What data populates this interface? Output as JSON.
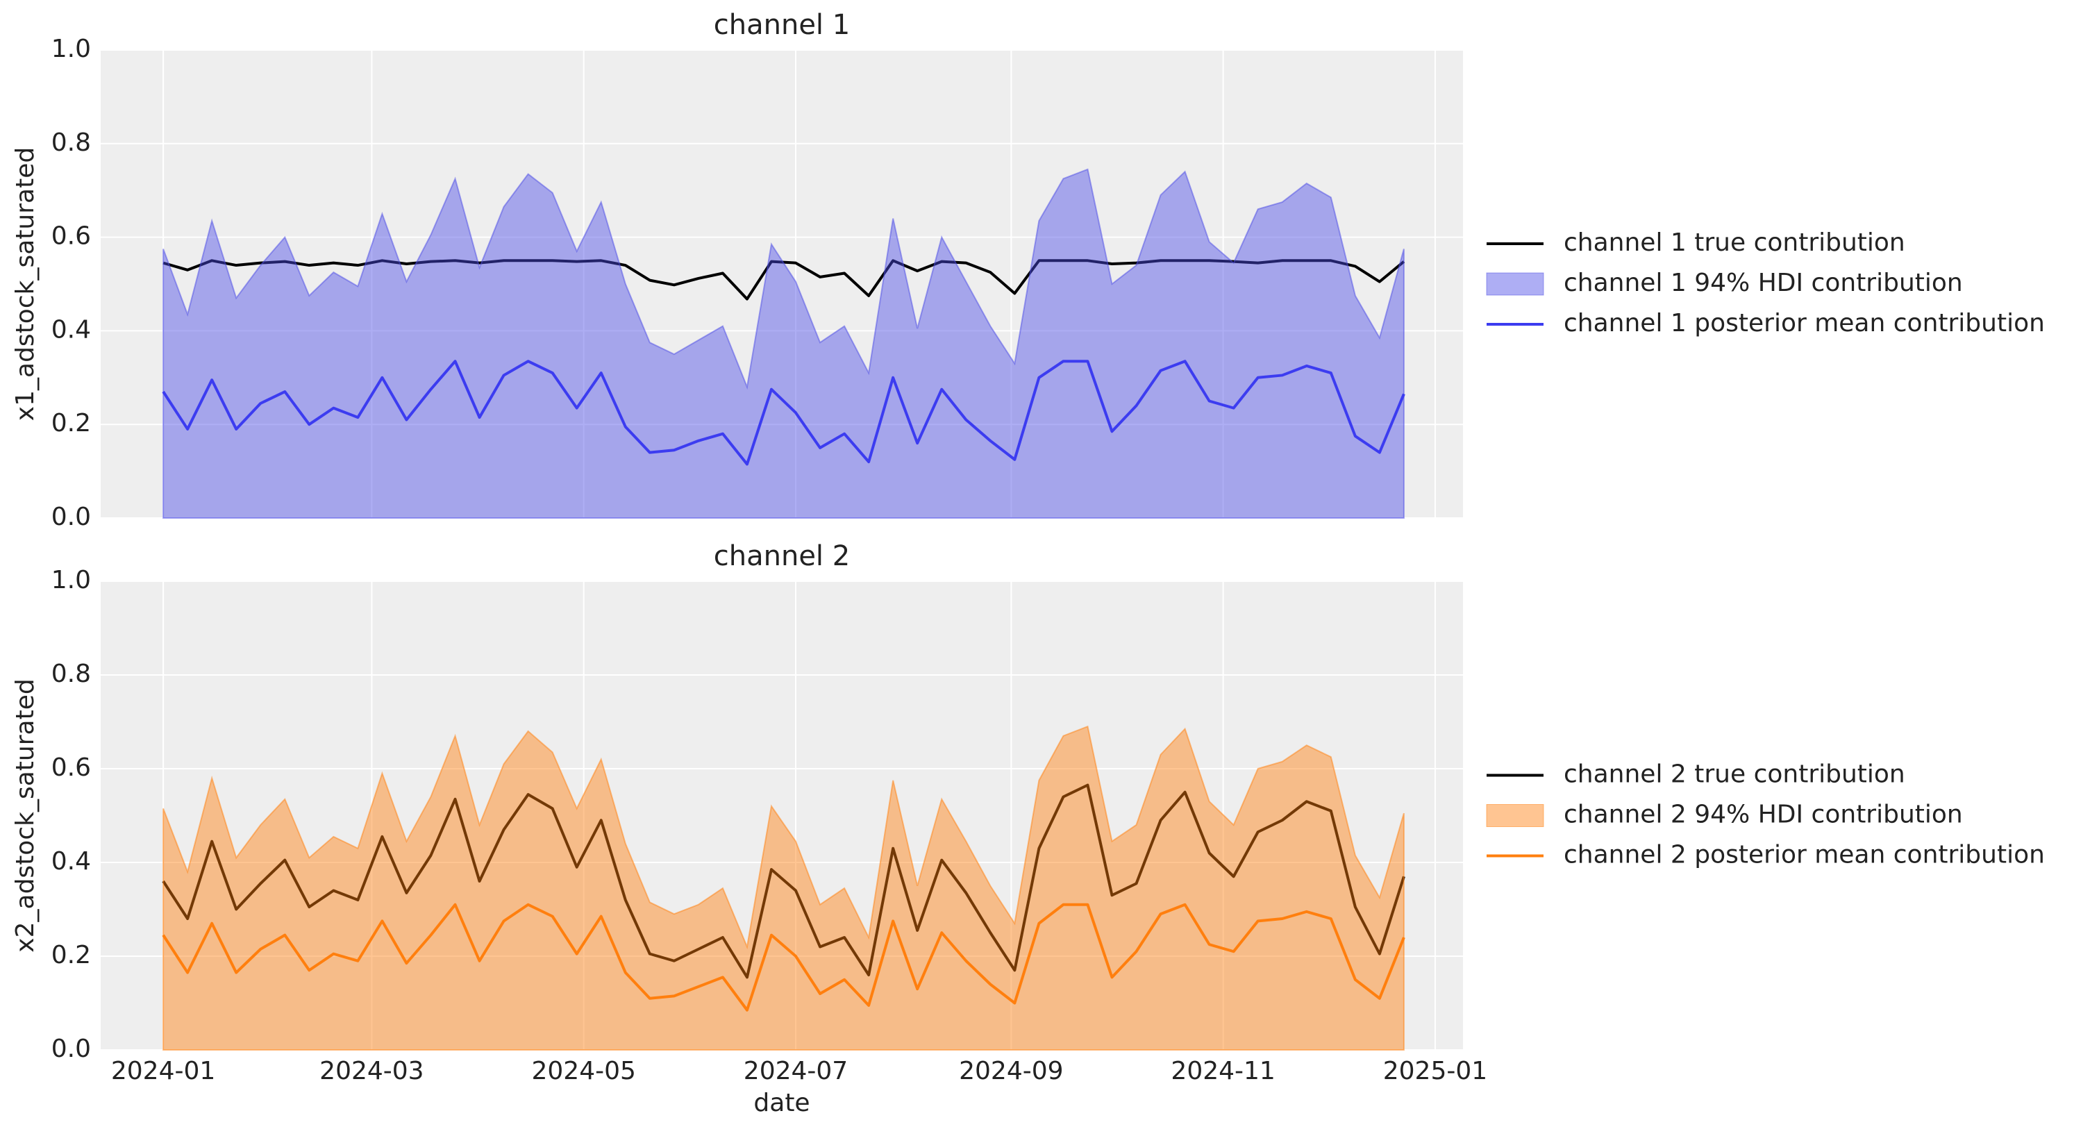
{
  "chart_data": [
    {
      "type": "line",
      "title": "channel 1",
      "ylabel": "x1_adstock_saturated",
      "x": [
        "2024-01-01",
        "2024-01-08",
        "2024-01-15",
        "2024-01-22",
        "2024-01-29",
        "2024-02-05",
        "2024-02-12",
        "2024-02-19",
        "2024-02-26",
        "2024-03-04",
        "2024-03-11",
        "2024-03-18",
        "2024-03-25",
        "2024-04-01",
        "2024-04-08",
        "2024-04-15",
        "2024-04-22",
        "2024-04-29",
        "2024-05-06",
        "2024-05-13",
        "2024-05-20",
        "2024-05-27",
        "2024-06-03",
        "2024-06-10",
        "2024-06-17",
        "2024-06-24",
        "2024-07-01",
        "2024-07-08",
        "2024-07-15",
        "2024-07-22",
        "2024-07-29",
        "2024-08-05",
        "2024-08-12",
        "2024-08-19",
        "2024-08-26",
        "2024-09-02",
        "2024-09-09",
        "2024-09-16",
        "2024-09-23",
        "2024-09-30",
        "2024-10-07",
        "2024-10-14",
        "2024-10-21",
        "2024-10-28",
        "2024-11-04",
        "2024-11-11",
        "2024-11-18",
        "2024-11-25",
        "2024-12-02",
        "2024-12-09",
        "2024-12-16",
        "2024-12-23"
      ],
      "xlim": [
        "2023-12-14",
        "2025-01-09"
      ],
      "xticks": [
        {
          "value": "2024-01-01",
          "label": "2024-01"
        },
        {
          "value": "2024-03-01",
          "label": "2024-03"
        },
        {
          "value": "2024-05-01",
          "label": "2024-05"
        },
        {
          "value": "2024-07-01",
          "label": "2024-07"
        },
        {
          "value": "2024-09-01",
          "label": "2024-09"
        },
        {
          "value": "2024-11-01",
          "label": "2024-11"
        },
        {
          "value": "2025-01-01",
          "label": "2025-01"
        }
      ],
      "show_xticklabels": false,
      "ylim": [
        0,
        1
      ],
      "yticks": [
        {
          "value": 0,
          "label": "0.0"
        },
        {
          "value": 0.2,
          "label": "0.2"
        },
        {
          "value": 0.4,
          "label": "0.4"
        },
        {
          "value": 0.6,
          "label": "0.6"
        },
        {
          "value": 0.8,
          "label": "0.8"
        },
        {
          "value": 1,
          "label": "1.0"
        }
      ],
      "grid": true,
      "legend": "right",
      "series": [
        {
          "name": "channel 1 true contribution",
          "color": "#000000",
          "values": [
            0.545,
            0.53,
            0.55,
            0.54,
            0.545,
            0.548,
            0.54,
            0.545,
            0.54,
            0.55,
            0.543,
            0.548,
            0.55,
            0.545,
            0.55,
            0.55,
            0.55,
            0.548,
            0.55,
            0.54,
            0.508,
            0.498,
            0.512,
            0.523,
            0.468,
            0.548,
            0.545,
            0.515,
            0.523,
            0.475,
            0.55,
            0.528,
            0.548,
            0.545,
            0.525,
            0.48,
            0.55,
            0.55,
            0.55,
            0.543,
            0.545,
            0.55,
            0.55,
            0.55,
            0.548,
            0.545,
            0.55,
            0.55,
            0.55,
            0.538,
            0.505,
            0.548
          ]
        },
        {
          "name": "channel 1 94% HDI contribution",
          "color": "#4b4be6",
          "type": "band",
          "lower": [
            0,
            0,
            0,
            0,
            0,
            0,
            0,
            0,
            0,
            0,
            0,
            0,
            0,
            0,
            0,
            0,
            0,
            0,
            0,
            0,
            0,
            0,
            0,
            0,
            0,
            0,
            0,
            0,
            0,
            0,
            0,
            0,
            0,
            0,
            0,
            0,
            0,
            0,
            0,
            0,
            0,
            0,
            0,
            0,
            0,
            0,
            0,
            0,
            0,
            0,
            0,
            0
          ],
          "upper": [
            0.575,
            0.435,
            0.635,
            0.47,
            0.54,
            0.6,
            0.475,
            0.525,
            0.495,
            0.65,
            0.505,
            0.605,
            0.725,
            0.535,
            0.665,
            0.735,
            0.695,
            0.57,
            0.675,
            0.5,
            0.375,
            0.35,
            0.38,
            0.41,
            0.28,
            0.585,
            0.505,
            0.375,
            0.41,
            0.31,
            0.64,
            0.405,
            0.6,
            0.505,
            0.41,
            0.33,
            0.635,
            0.725,
            0.745,
            0.5,
            0.54,
            0.69,
            0.74,
            0.59,
            0.545,
            0.66,
            0.675,
            0.715,
            0.685,
            0.475,
            0.385,
            0.575
          ]
        },
        {
          "name": "channel 1 posterior mean contribution",
          "color": "#3c3cf0",
          "values": [
            0.27,
            0.19,
            0.295,
            0.19,
            0.245,
            0.27,
            0.2,
            0.235,
            0.215,
            0.3,
            0.21,
            0.275,
            0.335,
            0.215,
            0.305,
            0.335,
            0.31,
            0.235,
            0.31,
            0.195,
            0.14,
            0.145,
            0.165,
            0.18,
            0.115,
            0.275,
            0.225,
            0.15,
            0.18,
            0.12,
            0.3,
            0.16,
            0.275,
            0.21,
            0.165,
            0.125,
            0.3,
            0.335,
            0.335,
            0.185,
            0.24,
            0.315,
            0.335,
            0.25,
            0.235,
            0.3,
            0.305,
            0.325,
            0.31,
            0.175,
            0.14,
            0.265
          ]
        }
      ]
    },
    {
      "type": "line",
      "title": "channel 2",
      "ylabel": "x2_adstock_saturated",
      "xlabel": "date",
      "x": [
        "2024-01-01",
        "2024-01-08",
        "2024-01-15",
        "2024-01-22",
        "2024-01-29",
        "2024-02-05",
        "2024-02-12",
        "2024-02-19",
        "2024-02-26",
        "2024-03-04",
        "2024-03-11",
        "2024-03-18",
        "2024-03-25",
        "2024-04-01",
        "2024-04-08",
        "2024-04-15",
        "2024-04-22",
        "2024-04-29",
        "2024-05-06",
        "2024-05-13",
        "2024-05-20",
        "2024-05-27",
        "2024-06-03",
        "2024-06-10",
        "2024-06-17",
        "2024-06-24",
        "2024-07-01",
        "2024-07-08",
        "2024-07-15",
        "2024-07-22",
        "2024-07-29",
        "2024-08-05",
        "2024-08-12",
        "2024-08-19",
        "2024-08-26",
        "2024-09-02",
        "2024-09-09",
        "2024-09-16",
        "2024-09-23",
        "2024-09-30",
        "2024-10-07",
        "2024-10-14",
        "2024-10-21",
        "2024-10-28",
        "2024-11-04",
        "2024-11-11",
        "2024-11-18",
        "2024-11-25",
        "2024-12-02",
        "2024-12-09",
        "2024-12-16",
        "2024-12-23"
      ],
      "xlim": [
        "2023-12-14",
        "2025-01-09"
      ],
      "xticks": [
        {
          "value": "2024-01-01",
          "label": "2024-01"
        },
        {
          "value": "2024-03-01",
          "label": "2024-03"
        },
        {
          "value": "2024-05-01",
          "label": "2024-05"
        },
        {
          "value": "2024-07-01",
          "label": "2024-07"
        },
        {
          "value": "2024-09-01",
          "label": "2024-09"
        },
        {
          "value": "2024-11-01",
          "label": "2024-11"
        },
        {
          "value": "2025-01-01",
          "label": "2025-01"
        }
      ],
      "show_xticklabels": true,
      "ylim": [
        0,
        1
      ],
      "yticks": [
        {
          "value": 0,
          "label": "0.0"
        },
        {
          "value": 0.2,
          "label": "0.2"
        },
        {
          "value": 0.4,
          "label": "0.4"
        },
        {
          "value": 0.6,
          "label": "0.6"
        },
        {
          "value": 0.8,
          "label": "0.8"
        },
        {
          "value": 1,
          "label": "1.0"
        }
      ],
      "grid": true,
      "legend": "right",
      "series": [
        {
          "name": "channel 2 true contribution",
          "color": "#000000",
          "values": [
            0.36,
            0.28,
            0.445,
            0.3,
            0.355,
            0.405,
            0.305,
            0.34,
            0.32,
            0.455,
            0.335,
            0.415,
            0.535,
            0.36,
            0.47,
            0.545,
            0.515,
            0.39,
            0.49,
            0.32,
            0.205,
            0.19,
            0.215,
            0.24,
            0.155,
            0.385,
            0.34,
            0.22,
            0.24,
            0.16,
            0.43,
            0.255,
            0.405,
            0.335,
            0.25,
            0.17,
            0.43,
            0.54,
            0.565,
            0.33,
            0.355,
            0.49,
            0.55,
            0.42,
            0.37,
            0.465,
            0.49,
            0.53,
            0.51,
            0.305,
            0.205,
            0.37
          ]
        },
        {
          "name": "channel 2 94% HDI contribution",
          "color": "#ff7f0e",
          "type": "band",
          "lower": [
            0,
            0,
            0,
            0,
            0,
            0,
            0,
            0,
            0,
            0,
            0,
            0,
            0,
            0,
            0,
            0,
            0,
            0,
            0,
            0,
            0,
            0,
            0,
            0,
            0,
            0,
            0,
            0,
            0,
            0,
            0,
            0,
            0,
            0,
            0,
            0,
            0,
            0,
            0,
            0,
            0,
            0,
            0,
            0,
            0,
            0,
            0,
            0,
            0,
            0,
            0,
            0
          ],
          "upper": [
            0.515,
            0.38,
            0.58,
            0.41,
            0.48,
            0.535,
            0.41,
            0.455,
            0.43,
            0.59,
            0.445,
            0.54,
            0.67,
            0.48,
            0.61,
            0.68,
            0.635,
            0.515,
            0.62,
            0.44,
            0.315,
            0.29,
            0.31,
            0.345,
            0.22,
            0.52,
            0.445,
            0.31,
            0.345,
            0.24,
            0.575,
            0.35,
            0.535,
            0.445,
            0.35,
            0.27,
            0.575,
            0.67,
            0.69,
            0.445,
            0.48,
            0.63,
            0.685,
            0.53,
            0.48,
            0.6,
            0.615,
            0.65,
            0.625,
            0.415,
            0.325,
            0.505
          ]
        },
        {
          "name": "channel 2 posterior mean contribution",
          "color": "#ff7f0e",
          "values": [
            0.245,
            0.165,
            0.27,
            0.165,
            0.215,
            0.245,
            0.17,
            0.205,
            0.19,
            0.275,
            0.185,
            0.245,
            0.31,
            0.19,
            0.275,
            0.31,
            0.285,
            0.205,
            0.285,
            0.165,
            0.11,
            0.115,
            0.135,
            0.155,
            0.085,
            0.245,
            0.2,
            0.12,
            0.15,
            0.095,
            0.275,
            0.13,
            0.25,
            0.19,
            0.14,
            0.1,
            0.27,
            0.31,
            0.31,
            0.155,
            0.21,
            0.29,
            0.31,
            0.225,
            0.21,
            0.275,
            0.28,
            0.295,
            0.28,
            0.15,
            0.11,
            0.24
          ]
        }
      ]
    }
  ]
}
